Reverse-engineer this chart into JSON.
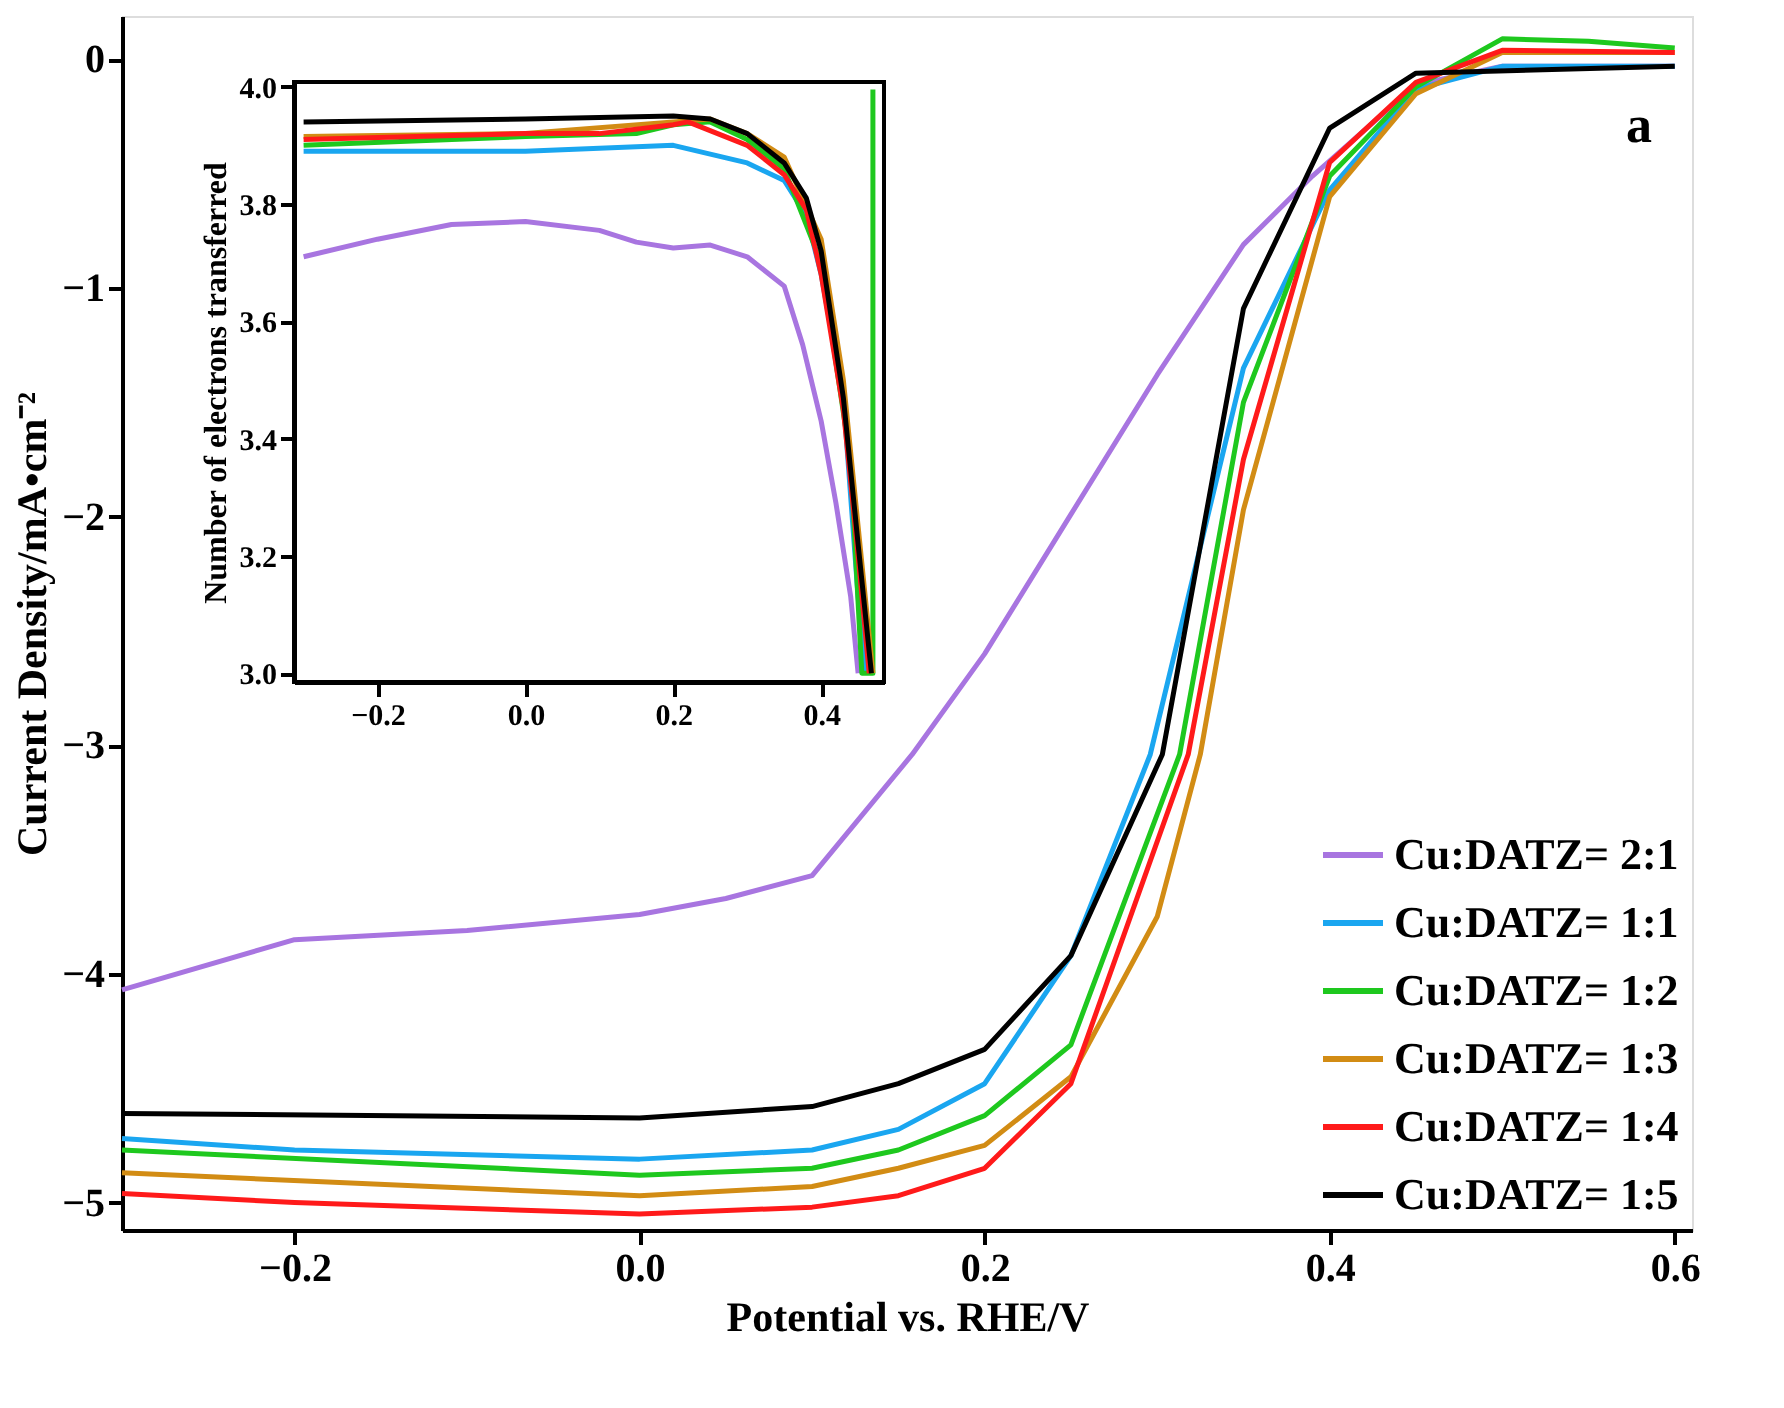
{
  "chart_data": [
    {
      "type": "line",
      "xlabel": "Potential vs. RHE/V",
      "ylabel": "Current Density/mA•cm⁻²",
      "xlim": [
        -0.3,
        0.61
      ],
      "ylim": [
        -5.12,
        0.19
      ],
      "xticks": [
        -0.2,
        {
          "value": 0,
          "label": "0.0"
        },
        0.2,
        0.4,
        0.6
      ],
      "yticks": [
        0,
        -1,
        -2,
        -3,
        -4,
        -5
      ],
      "grid": false,
      "legend": "bottom right",
      "marker": "none",
      "line_style": "solid",
      "annotations": [
        "a"
      ],
      "series": [
        {
          "name": "Cu:DATZ= 2:1",
          "color": "#a875e0",
          "x": [
            -0.3,
            -0.2,
            -0.1,
            0,
            0.05,
            0.1,
            0.158,
            0.2,
            0.25,
            0.3,
            0.35,
            0.39,
            0.42,
            0.45,
            0.5,
            0.6
          ],
          "values": [
            -4.07,
            -3.85,
            -3.81,
            -3.74,
            -3.67,
            -3.57,
            -3.04,
            -2.6,
            -1.99,
            -1.38,
            -0.81,
            -0.51,
            -0.31,
            -0.11,
            -0.03,
            -0.03
          ]
        },
        {
          "name": "Cu:DATZ= 1:1",
          "color": "#1aa6f0",
          "x": [
            -0.3,
            -0.2,
            0,
            0.1,
            0.15,
            0.2,
            0.25,
            0.296,
            0.35,
            0.4,
            0.45,
            0.5,
            0.6
          ],
          "values": [
            -4.72,
            -4.77,
            -4.81,
            -4.77,
            -4.68,
            -4.48,
            -3.92,
            -3.04,
            -1.35,
            -0.57,
            -0.13,
            -0.03,
            -0.03
          ]
        },
        {
          "name": "Cu:DATZ= 1:2",
          "color": "#1ec81e",
          "x": [
            -0.3,
            0,
            0.1,
            0.15,
            0.2,
            0.25,
            0.313,
            0.35,
            0.4,
            0.45,
            0.5,
            0.55,
            0.6
          ],
          "values": [
            -4.77,
            -4.88,
            -4.85,
            -4.77,
            -4.62,
            -4.31,
            -3.04,
            -1.5,
            -0.51,
            -0.12,
            0.09,
            0.08,
            0.05
          ]
        },
        {
          "name": "Cu:DATZ= 1:3",
          "color": "#d28c14",
          "x": [
            -0.3,
            0,
            0.1,
            0.15,
            0.2,
            0.25,
            0.3,
            0.325,
            0.35,
            0.4,
            0.45,
            0.5,
            0.6
          ],
          "values": [
            -4.87,
            -4.97,
            -4.93,
            -4.85,
            -4.75,
            -4.45,
            -3.75,
            -3.04,
            -1.97,
            -0.6,
            -0.15,
            0.03,
            0.03
          ]
        },
        {
          "name": "Cu:DATZ= 1:4",
          "color": "#ff1a1a",
          "x": [
            -0.3,
            -0.2,
            0,
            0.1,
            0.15,
            0.2,
            0.25,
            0.318,
            0.35,
            0.4,
            0.45,
            0.5,
            0.6
          ],
          "values": [
            -4.96,
            -5.0,
            -5.05,
            -5.02,
            -4.97,
            -4.85,
            -4.48,
            -3.04,
            -1.75,
            -0.45,
            -0.1,
            0.04,
            0.03
          ]
        },
        {
          "name": "Cu:DATZ= 1:5",
          "color": "#000000",
          "x": [
            -0.3,
            0,
            0.1,
            0.15,
            0.2,
            0.25,
            0.303,
            0.35,
            0.4,
            0.45,
            0.6
          ],
          "values": [
            -4.61,
            -4.63,
            -4.58,
            -4.48,
            -4.33,
            -3.92,
            -3.04,
            -1.09,
            -0.3,
            -0.06,
            -0.03
          ]
        }
      ]
    },
    {
      "type": "line",
      "ylabel": "Number of electrons transferred",
      "xlim": [
        -0.313,
        0.485
      ],
      "ylim": [
        2.985,
        4.008
      ],
      "xticks": [
        -0.2,
        {
          "value": 0,
          "label": "0.0"
        },
        0.2,
        0.4
      ],
      "yticks": [
        {
          "value": 3,
          "label": "3.0"
        },
        3.2,
        3.4,
        3.6,
        3.8,
        {
          "value": 4,
          "label": "4.0"
        }
      ],
      "grid": false,
      "marker": "none",
      "line_style": "solid",
      "series": [
        {
          "color": "#a875e0",
          "x": [
            -0.3,
            -0.2,
            -0.1,
            0,
            0.1,
            0.15,
            0.2,
            0.25,
            0.3,
            0.35,
            0.375,
            0.4,
            0.42,
            0.44,
            0.45
          ],
          "values": [
            3.71,
            3.74,
            3.765,
            3.77,
            3.755,
            3.735,
            3.725,
            3.73,
            3.71,
            3.66,
            3.56,
            3.43,
            3.29,
            3.13,
            3.0
          ]
        },
        {
          "color": "#1aa6f0",
          "x": [
            -0.3,
            0,
            0.2,
            0.3,
            0.35,
            0.38,
            0.4,
            0.43,
            0.45,
            0.46
          ],
          "values": [
            3.89,
            3.89,
            3.9,
            3.87,
            3.84,
            3.78,
            3.68,
            3.47,
            3.13,
            3.0
          ]
        },
        {
          "color": "#1ec81e",
          "x": [
            -0.3,
            0,
            0.15,
            0.2,
            0.25,
            0.3,
            0.35,
            0.4,
            0.44,
            0.455,
            0.47,
            0.47
          ],
          "values": [
            3.9,
            3.915,
            3.92,
            3.935,
            3.94,
            3.91,
            3.86,
            3.7,
            3.36,
            3.0,
            3.0,
            3.995
          ]
        },
        {
          "color": "#d28c14",
          "x": [
            -0.3,
            0,
            0.2,
            0.25,
            0.3,
            0.35,
            0.4,
            0.43,
            0.45,
            0.47
          ],
          "values": [
            3.915,
            3.92,
            3.94,
            3.945,
            3.92,
            3.88,
            3.74,
            3.5,
            3.25,
            3.0
          ]
        },
        {
          "color": "#ff1a1a",
          "x": [
            -0.3,
            0,
            0.1,
            0.2,
            0.22,
            0.3,
            0.35,
            0.38,
            0.4,
            0.43,
            0.45,
            0.465
          ],
          "values": [
            3.91,
            3.92,
            3.92,
            3.935,
            3.94,
            3.9,
            3.85,
            3.79,
            3.68,
            3.45,
            3.2,
            3.0
          ]
        },
        {
          "color": "#000000",
          "x": [
            -0.3,
            0,
            0.2,
            0.25,
            0.3,
            0.35,
            0.38,
            0.4,
            0.43,
            0.45,
            0.468
          ],
          "values": [
            3.94,
            3.945,
            3.95,
            3.945,
            3.92,
            3.87,
            3.81,
            3.72,
            3.47,
            3.22,
            3.0
          ]
        }
      ]
    }
  ]
}
